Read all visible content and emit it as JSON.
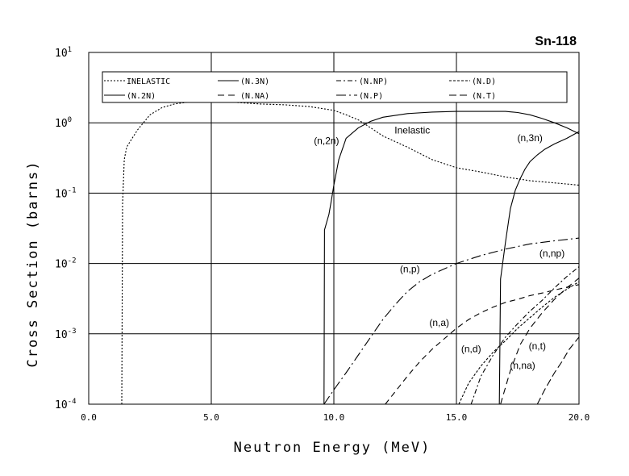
{
  "chart_data": {
    "type": "line",
    "title": "Sn-118",
    "xlabel": "Neutron Energy (MeV)",
    "ylabel": "Cross Section (barns)",
    "xlim": [
      0,
      20
    ],
    "ylim": [
      0.0001,
      10
    ],
    "yscale": "log",
    "grid": true,
    "legend_position": "top",
    "x_ticks": [
      "0.0",
      "5.0",
      "10.0",
      "15.0",
      "20.0"
    ],
    "y_ticks": [
      {
        "value": 10,
        "mantissa": "10",
        "exp": "1"
      },
      {
        "value": 1,
        "mantissa": "10",
        "exp": "0"
      },
      {
        "value": 0.1,
        "mantissa": "10",
        "exp": "-1"
      },
      {
        "value": 0.01,
        "mantissa": "10",
        "exp": "-2"
      },
      {
        "value": 0.001,
        "mantissa": "10",
        "exp": "-3"
      },
      {
        "value": 0.0001,
        "mantissa": "10",
        "exp": "-4"
      }
    ],
    "series": [
      {
        "name": "INELASTIC",
        "dash": "2,2",
        "x": [
          1.35,
          1.38,
          1.45,
          1.55,
          1.7,
          2.0,
          2.5,
          3.0,
          3.5,
          4.0,
          4.5,
          5.0,
          6.0,
          7.0,
          8.0,
          9.0,
          10.0,
          10.5,
          11.0,
          11.5,
          12.0,
          13.0,
          14.0,
          15.0,
          16.0,
          17.0,
          18.0,
          19.0,
          20.0
        ],
        "y": [
          0.0001,
          0.07,
          0.3,
          0.45,
          0.55,
          0.8,
          1.3,
          1.65,
          1.85,
          1.95,
          2.0,
          2.0,
          1.95,
          1.85,
          1.8,
          1.7,
          1.5,
          1.3,
          1.1,
          0.85,
          0.65,
          0.45,
          0.3,
          0.23,
          0.2,
          0.17,
          0.15,
          0.14,
          0.13
        ]
      },
      {
        "name": "(N,2N)",
        "dash": "",
        "x": [
          9.6,
          9.62,
          9.8,
          9.9,
          10.0,
          10.2,
          10.5,
          11.0,
          11.5,
          12.0,
          13.0,
          14.0,
          15.0,
          16.0,
          17.0,
          17.5,
          18.0,
          18.5,
          19.0,
          19.5,
          20.0
        ],
        "y": [
          0.0001,
          0.03,
          0.05,
          0.08,
          0.13,
          0.3,
          0.6,
          0.85,
          1.05,
          1.2,
          1.35,
          1.42,
          1.45,
          1.45,
          1.45,
          1.4,
          1.3,
          1.15,
          1.0,
          0.85,
          0.7
        ]
      },
      {
        "name": "(N,3N)",
        "dash": "",
        "x": [
          16.75,
          16.8,
          17.0,
          17.2,
          17.4,
          17.6,
          17.8,
          18.0,
          18.3,
          18.6,
          19.0,
          19.5,
          20.0
        ],
        "y": [
          0.0001,
          0.006,
          0.02,
          0.06,
          0.11,
          0.16,
          0.22,
          0.28,
          0.35,
          0.42,
          0.5,
          0.6,
          0.75
        ]
      },
      {
        "name": "(N,NA)",
        "dash": "8,5",
        "x": [
          16.8,
          17.2,
          17.6,
          18.0,
          18.5,
          19.0,
          19.5,
          20.0
        ],
        "y": [
          0.0001,
          0.0003,
          0.0007,
          0.0012,
          0.002,
          0.0031,
          0.0045,
          0.0062
        ]
      },
      {
        "name": "(N,NP)",
        "dash": "6,3,2,3",
        "x": [
          15.6,
          16.0,
          16.5,
          17.0,
          17.5,
          18.0,
          18.5,
          19.0,
          19.5,
          20.0
        ],
        "y": [
          0.0001,
          0.00025,
          0.0005,
          0.0009,
          0.0014,
          0.0021,
          0.003,
          0.0045,
          0.0065,
          0.009
        ]
      },
      {
        "name": "(N,P)",
        "dash": "12,4,2,4",
        "x": [
          9.6,
          10.0,
          10.5,
          11.0,
          11.5,
          12.0,
          12.5,
          13.0,
          13.5,
          14.0,
          15.0,
          16.0,
          17.0,
          18.0,
          19.0,
          20.0
        ],
        "y": [
          0.0001,
          0.00016,
          0.00028,
          0.0005,
          0.0009,
          0.0016,
          0.0026,
          0.004,
          0.0055,
          0.007,
          0.01,
          0.013,
          0.016,
          0.019,
          0.021,
          0.023
        ]
      },
      {
        "name": "(N,D)",
        "dash": "3,2",
        "x": [
          15.1,
          15.5,
          16.0,
          16.5,
          17.0,
          17.5,
          18.0,
          18.5,
          19.0,
          19.5,
          20.0
        ],
        "y": [
          0.0001,
          0.0002,
          0.00035,
          0.00055,
          0.0008,
          0.0012,
          0.0017,
          0.0024,
          0.0033,
          0.0043,
          0.0055
        ]
      },
      {
        "name": "(N,A)",
        "dash": "7,5",
        "x": [
          12.1,
          12.5,
          13.0,
          13.5,
          14.0,
          14.5,
          15.0,
          15.5,
          16.0,
          16.5,
          17.0,
          17.5,
          18.0,
          18.5,
          19.0,
          19.5,
          20.0
        ],
        "y": [
          0.0001,
          0.00015,
          0.00025,
          0.0004,
          0.0006,
          0.00085,
          0.0012,
          0.0016,
          0.002,
          0.0024,
          0.0028,
          0.0031,
          0.0035,
          0.0038,
          0.0042,
          0.0046,
          0.005
        ]
      },
      {
        "name": "(N,T)",
        "dash": "9,4",
        "x": [
          18.3,
          18.6,
          19.0,
          19.3,
          19.6,
          20.0
        ],
        "y": [
          0.0001,
          0.00016,
          0.00028,
          0.0004,
          0.0006,
          0.0009
        ]
      }
    ],
    "legend": [
      {
        "label": "INELASTIC",
        "dash": "2,2"
      },
      {
        "label": "(N.3N)",
        "dash": ""
      },
      {
        "label": "(N.NP)",
        "dash": "6,3,2,3"
      },
      {
        "label": "(N.D)",
        "dash": "3,2"
      },
      {
        "label": "(N.2N)",
        "dash": ""
      },
      {
        "label": "(N.NA)",
        "dash": "8,5"
      },
      {
        "label": "(N.P)",
        "dash": "12,4,2,4"
      },
      {
        "label": "(N.T)",
        "dash": "9,4"
      }
    ],
    "annotations": [
      {
        "text": "Inelastic",
        "x": 13.2,
        "y": 0.7
      },
      {
        "text": "(n,2n)",
        "x": 9.7,
        "y": 0.5
      },
      {
        "text": "(n,3n)",
        "x": 18.0,
        "y": 0.55
      },
      {
        "text": "(n,np)",
        "x": 18.9,
        "y": 0.0125
      },
      {
        "text": "(n,p)",
        "x": 13.1,
        "y": 0.0075
      },
      {
        "text": "(n,a)",
        "x": 14.3,
        "y": 0.0013
      },
      {
        "text": "(n,d)",
        "x": 15.6,
        "y": 0.00055
      },
      {
        "text": "(n,t)",
        "x": 18.3,
        "y": 0.0006
      },
      {
        "text": "(n,na)",
        "x": 17.7,
        "y": 0.00032
      }
    ]
  }
}
